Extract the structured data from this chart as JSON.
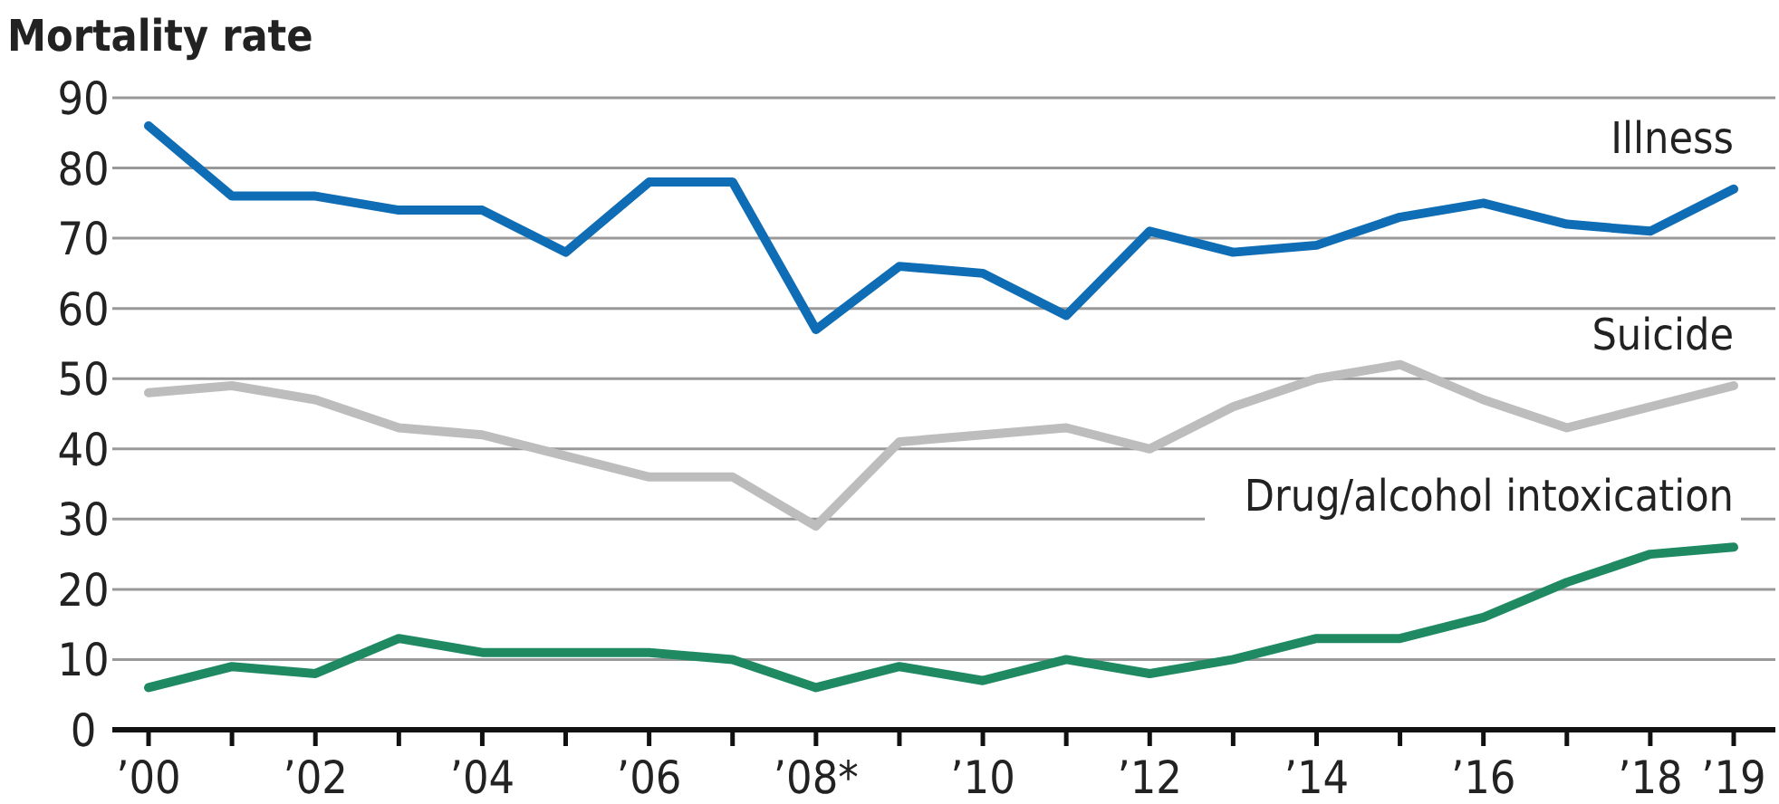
{
  "chart_data": {
    "type": "line",
    "ylabel": "Mortality rate",
    "categories": [
      "’00",
      null,
      "’02",
      null,
      "’04",
      null,
      "’06",
      null,
      "’08*",
      null,
      "’10",
      null,
      "’12",
      null,
      "’14",
      null,
      "’16",
      null,
      "’18",
      "’19"
    ],
    "series": [
      {
        "name": "Illness",
        "color": "#0f6db5",
        "values": [
          86,
          76,
          76,
          74,
          74,
          68,
          78,
          78,
          57,
          66,
          65,
          59,
          71,
          68,
          69,
          73,
          75,
          72,
          71,
          77
        ]
      },
      {
        "name": "Suicide",
        "color": "#bdbdbd",
        "values": [
          48,
          49,
          47,
          43,
          42,
          39,
          36,
          36,
          29,
          41,
          42,
          43,
          40,
          46,
          50,
          52,
          47,
          43,
          46,
          49
        ]
      },
      {
        "name": "Drug/alcohol intoxication",
        "color": "#1f8a62",
        "values": [
          6,
          9,
          8,
          13,
          11,
          11,
          11,
          10,
          6,
          9,
          7,
          10,
          8,
          10,
          13,
          13,
          16,
          21,
          25,
          26
        ]
      }
    ],
    "ylim": [
      0,
      90
    ],
    "yticks": [
      0,
      10,
      20,
      30,
      40,
      50,
      60,
      70,
      80,
      90
    ],
    "grid": "y",
    "legend": false,
    "marker": "none",
    "line_style": "solid"
  }
}
